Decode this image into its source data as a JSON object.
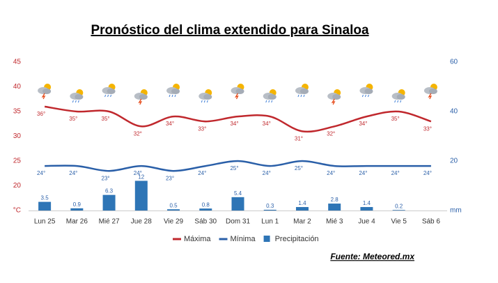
{
  "chart_data": {
    "type": "line",
    "title": "Pronóstico del clima extendido para Sinaloa",
    "source": "Fuente: Meteored.mx",
    "categories": [
      "Lun 25",
      "Mar 26",
      "Mié 27",
      "Jue 28",
      "Vie 29",
      "Sáb 30",
      "Dom 31",
      "Lun 1",
      "Mar 2",
      "Mié 3",
      "Jue 4",
      "Vie 5",
      "Sáb 6"
    ],
    "ylim": [
      15,
      45
    ],
    "yticks": [
      {
        "value": 15,
        "label": "°C"
      },
      20,
      25,
      30,
      35,
      40,
      45
    ],
    "y2lim": [
      0,
      60
    ],
    "y2ticks": [
      {
        "value": 0,
        "label": "mm"
      },
      20,
      40,
      60
    ],
    "grid": false,
    "legend": "bottom",
    "series": [
      {
        "name": "Máxima",
        "type": "line",
        "color": "#c0282d",
        "values": [
          36,
          35,
          35,
          32,
          34,
          33,
          34,
          34,
          31,
          32,
          34,
          35,
          33
        ],
        "value_labels": [
          "36°",
          "35°",
          "35°",
          "32°",
          "34°",
          "33°",
          "34°",
          "34°",
          "31°",
          "32°",
          "34°",
          "35°",
          "33°"
        ]
      },
      {
        "name": "Mínima",
        "type": "line",
        "color": "#2a5fa8",
        "values": [
          24,
          24,
          23,
          24,
          23,
          24,
          25,
          24,
          25,
          24,
          24,
          24,
          24
        ],
        "value_labels": [
          "24°",
          "24°",
          "23°",
          "24°",
          "23°",
          "24°",
          "25°",
          "24°",
          "25°",
          "24°",
          "24°",
          "24°",
          "24°"
        ]
      },
      {
        "name": "Precipitación",
        "type": "bar",
        "axis": "y2",
        "color": "#2e75b6",
        "values": [
          3.5,
          0.9,
          6.3,
          12,
          0.5,
          0.8,
          5.4,
          0.3,
          1.4,
          2.8,
          1.4,
          0.2,
          null
        ]
      }
    ]
  }
}
